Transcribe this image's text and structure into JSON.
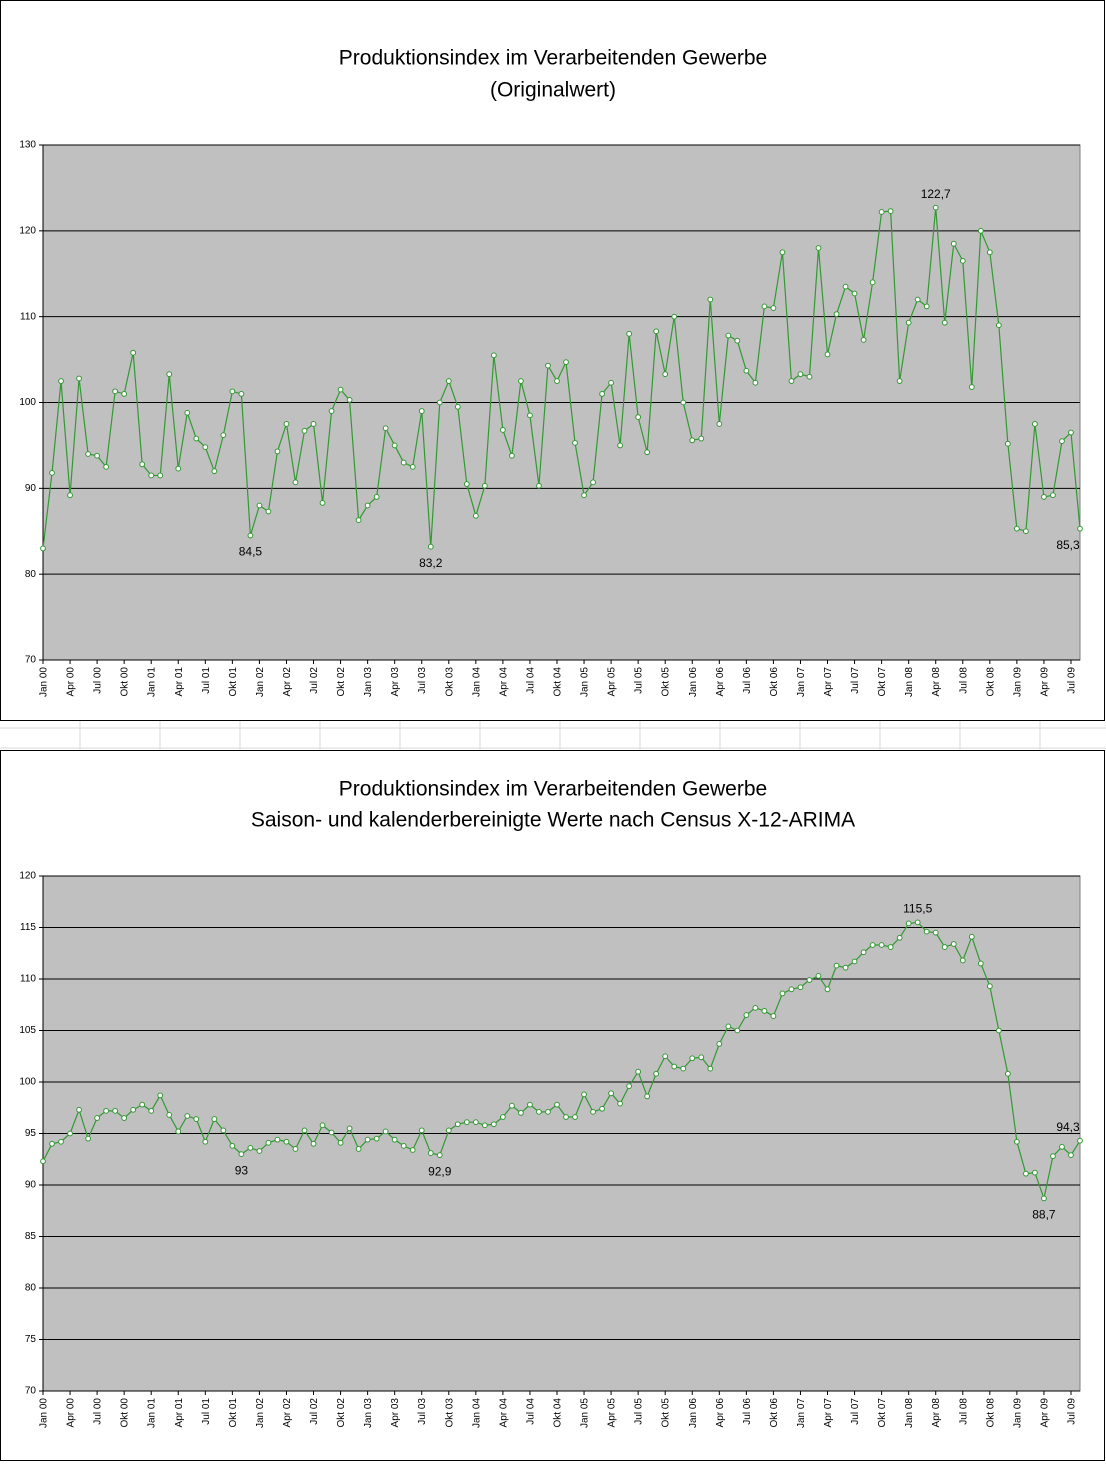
{
  "chart_data": [
    {
      "type": "line",
      "title": "Produktionsindex im Verarbeitenden Gewerbe",
      "subtitle": "(Originalwert)",
      "categories": [
        "Jan 00",
        null,
        null,
        "Apr 00",
        null,
        null,
        "Jul 00",
        null,
        null,
        "Okt 00",
        null,
        null,
        "Jan 01",
        null,
        null,
        "Apr 01",
        null,
        null,
        "Jul 01",
        null,
        null,
        "Okt 01",
        null,
        null,
        "Jan 02",
        null,
        null,
        "Apr 02",
        null,
        null,
        "Jul 02",
        null,
        null,
        "Okt 02",
        null,
        null,
        "Jan 03",
        null,
        null,
        "Apr 03",
        null,
        null,
        "Jul 03",
        null,
        null,
        "Okt 03",
        null,
        null,
        "Jan 04",
        null,
        null,
        "Apr 04",
        null,
        null,
        "Jul 04",
        null,
        null,
        "Okt 04",
        null,
        null,
        "Jan 05",
        null,
        null,
        "Apr 05",
        null,
        null,
        "Jul 05",
        null,
        null,
        "Okt 05",
        null,
        null,
        "Jan 06",
        null,
        null,
        "Apr 06",
        null,
        null,
        "Jul 06",
        null,
        null,
        "Okt 06",
        null,
        null,
        "Jan 07",
        null,
        null,
        "Apr 07",
        null,
        null,
        "Jul 07",
        null,
        null,
        "Okt 07",
        null,
        null,
        "Jan 08",
        null,
        null,
        "Apr 08",
        null,
        null,
        "Jul 08",
        null,
        null,
        "Okt 08",
        null,
        null,
        "Jan 09",
        null,
        null,
        "Apr 09",
        null,
        null,
        "Jul 09",
        null
      ],
      "values": [
        83.0,
        91.8,
        102.5,
        89.2,
        102.8,
        94.0,
        93.8,
        92.5,
        101.3,
        101.0,
        105.8,
        92.8,
        91.5,
        91.5,
        103.3,
        92.3,
        98.8,
        95.8,
        94.8,
        92.0,
        96.2,
        101.3,
        101.0,
        84.5,
        88.0,
        87.3,
        94.3,
        97.5,
        90.7,
        96.7,
        97.5,
        88.3,
        99.0,
        101.5,
        100.3,
        86.3,
        88.0,
        89.0,
        97.0,
        95.0,
        93.0,
        92.5,
        99.0,
        83.2,
        100.0,
        102.5,
        99.5,
        90.5,
        86.8,
        90.3,
        105.5,
        96.8,
        93.8,
        102.5,
        98.5,
        90.3,
        104.3,
        102.5,
        104.7,
        95.3,
        89.2,
        90.7,
        101.0,
        102.3,
        95.0,
        108.0,
        98.3,
        94.2,
        108.3,
        103.3,
        110.0,
        100.0,
        95.6,
        95.8,
        112.0,
        97.5,
        107.8,
        107.2,
        103.7,
        102.3,
        111.2,
        111.0,
        117.5,
        102.5,
        103.3,
        103.0,
        118.0,
        105.6,
        110.3,
        113.5,
        112.7,
        107.3,
        114.0,
        122.2,
        122.3,
        102.5,
        109.3,
        112.0,
        111.2,
        122.7,
        109.3,
        118.5,
        116.5,
        101.8,
        120.0,
        117.5,
        109.0,
        95.2,
        85.3,
        85.0,
        97.5,
        89.0,
        89.2,
        95.5,
        96.5,
        85.3
      ],
      "value_labels": [
        null,
        null,
        null,
        null,
        null,
        null,
        null,
        null,
        null,
        null,
        null,
        null,
        null,
        null,
        null,
        null,
        null,
        null,
        null,
        null,
        null,
        null,
        null,
        "84,5",
        null,
        null,
        null,
        null,
        null,
        null,
        null,
        null,
        null,
        null,
        null,
        null,
        null,
        null,
        null,
        null,
        null,
        null,
        null,
        "83,2",
        null,
        null,
        null,
        null,
        null,
        null,
        null,
        null,
        null,
        null,
        null,
        null,
        null,
        null,
        null,
        null,
        null,
        null,
        null,
        null,
        null,
        null,
        null,
        null,
        null,
        null,
        null,
        null,
        null,
        null,
        null,
        null,
        null,
        null,
        null,
        null,
        null,
        null,
        null,
        null,
        null,
        null,
        null,
        null,
        null,
        null,
        null,
        null,
        null,
        null,
        null,
        null,
        null,
        null,
        null,
        "122,7",
        null,
        null,
        null,
        null,
        null,
        null,
        null,
        null,
        null,
        null,
        null,
        null,
        null,
        null,
        null,
        "85,3"
      ],
      "color": "#339933",
      "ylim": [
        70,
        130
      ],
      "yticks": [
        70,
        80,
        90,
        100,
        110,
        120,
        130
      ],
      "grid": true
    },
    {
      "type": "line",
      "title": "Produktionsindex im Verarbeitenden Gewerbe",
      "subtitle": "Saison- und kalenderbereinigte Werte nach Census X-12-ARIMA",
      "categories": [
        "Jan 00",
        null,
        null,
        "Apr 00",
        null,
        null,
        "Jul 00",
        null,
        null,
        "Okt 00",
        null,
        null,
        "Jan 01",
        null,
        null,
        "Apr 01",
        null,
        null,
        "Jul 01",
        null,
        null,
        "Okt 01",
        null,
        null,
        "Jan 02",
        null,
        null,
        "Apr 02",
        null,
        null,
        "Jul 02",
        null,
        null,
        "Okt 02",
        null,
        null,
        "Jan 03",
        null,
        null,
        "Apr 03",
        null,
        null,
        "Jul 03",
        null,
        null,
        "Okt 03",
        null,
        null,
        "Jan 04",
        null,
        null,
        "Apr 04",
        null,
        null,
        "Jul 04",
        null,
        null,
        "Okt 04",
        null,
        null,
        "Jan 05",
        null,
        null,
        "Apr 05",
        null,
        null,
        "Jul 05",
        null,
        null,
        "Okt 05",
        null,
        null,
        "Jan 06",
        null,
        null,
        "Apr 06",
        null,
        null,
        "Jul 06",
        null,
        null,
        "Okt 06",
        null,
        null,
        "Jan 07",
        null,
        null,
        "Apr 07",
        null,
        null,
        "Jul 07",
        null,
        null,
        "Okt 07",
        null,
        null,
        "Jan 08",
        null,
        null,
        "Apr 08",
        null,
        null,
        "Jul 08",
        null,
        null,
        "Okt 08",
        null,
        null,
        "Jan 09",
        null,
        null,
        "Apr 09",
        null,
        null,
        "Jul 09",
        null
      ],
      "values": [
        92.3,
        94.0,
        94.2,
        95.0,
        97.3,
        94.5,
        96.5,
        97.2,
        97.2,
        96.5,
        97.3,
        97.8,
        97.2,
        98.7,
        96.8,
        95.2,
        96.7,
        96.4,
        94.2,
        96.4,
        95.3,
        93.8,
        93.0,
        93.6,
        93.3,
        94.1,
        94.4,
        94.2,
        93.5,
        95.3,
        94.0,
        95.8,
        95.1,
        94.1,
        95.5,
        93.5,
        94.4,
        94.5,
        95.2,
        94.4,
        93.8,
        93.4,
        95.3,
        93.1,
        92.9,
        95.3,
        95.9,
        96.1,
        96.1,
        95.8,
        95.9,
        96.6,
        97.7,
        97.0,
        97.8,
        97.1,
        97.1,
        97.8,
        96.6,
        96.6,
        98.8,
        97.1,
        97.4,
        98.9,
        97.9,
        99.6,
        101.0,
        98.6,
        100.8,
        102.5,
        101.5,
        101.3,
        102.3,
        102.4,
        101.3,
        103.7,
        105.4,
        105.0,
        106.5,
        107.2,
        106.9,
        106.4,
        108.6,
        109.0,
        109.2,
        109.9,
        110.3,
        109.0,
        111.3,
        111.1,
        111.7,
        112.6,
        113.3,
        113.3,
        113.1,
        114.0,
        115.4,
        115.5,
        114.6,
        114.5,
        113.1,
        113.4,
        111.8,
        114.1,
        111.5,
        109.3,
        105.0,
        100.8,
        94.2,
        91.1,
        91.2,
        88.7,
        92.8,
        93.7,
        92.9,
        94.3
      ],
      "value_labels": [
        null,
        null,
        null,
        null,
        null,
        null,
        null,
        null,
        null,
        null,
        null,
        null,
        null,
        null,
        null,
        null,
        null,
        null,
        null,
        null,
        null,
        null,
        "93",
        null,
        null,
        null,
        null,
        null,
        null,
        null,
        null,
        null,
        null,
        null,
        null,
        null,
        null,
        null,
        null,
        null,
        null,
        null,
        null,
        null,
        "92,9",
        null,
        null,
        null,
        null,
        null,
        null,
        null,
        null,
        null,
        null,
        null,
        null,
        null,
        null,
        null,
        null,
        null,
        null,
        null,
        null,
        null,
        null,
        null,
        null,
        null,
        null,
        null,
        null,
        null,
        null,
        null,
        null,
        null,
        null,
        null,
        null,
        null,
        null,
        null,
        null,
        null,
        null,
        null,
        null,
        null,
        null,
        null,
        null,
        null,
        null,
        null,
        null,
        "115,5",
        null,
        null,
        null,
        null,
        null,
        null,
        null,
        null,
        null,
        null,
        null,
        null,
        null,
        "88,7",
        null,
        null,
        null,
        "94,3"
      ],
      "color": "#339933",
      "ylim": [
        70,
        120
      ],
      "yticks": [
        70,
        75,
        80,
        85,
        90,
        95,
        100,
        105,
        110,
        115,
        120
      ],
      "grid": true
    }
  ]
}
